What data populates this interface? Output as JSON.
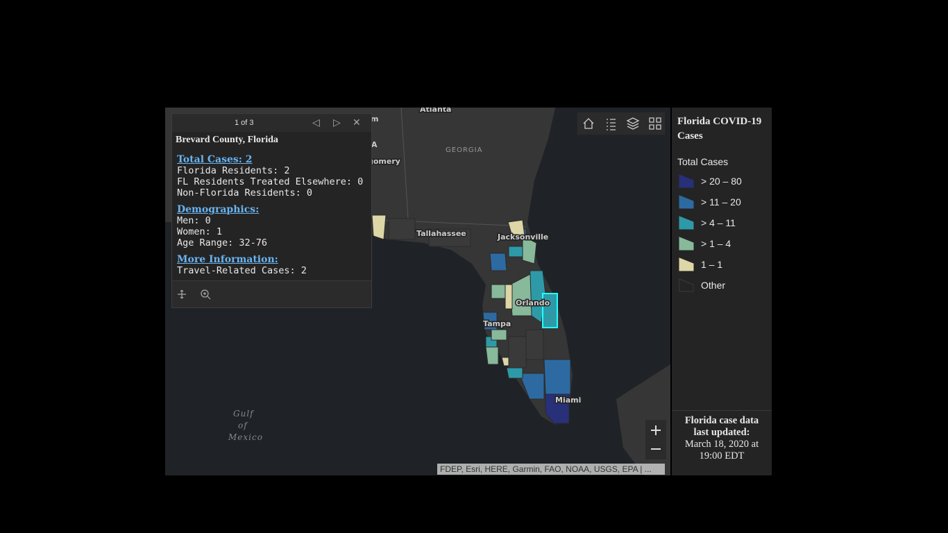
{
  "popup": {
    "pager": "1 of 3",
    "title": "Brevard County, Florida",
    "sections": [
      {
        "heading": "Total Cases: 2",
        "lines": [
          "Florida Residents: 2",
          "FL Residents Treated Elsewhere: 0",
          "Non-Florida Residents: 0"
        ]
      },
      {
        "heading": "Demographics:",
        "lines": [
          "Men: 0",
          "Women: 1",
          "Age Range: 32-76"
        ]
      },
      {
        "heading": "More Information:",
        "lines": [
          "Travel-Related Cases: 2"
        ]
      }
    ]
  },
  "map_labels": {
    "atlanta": "Atlanta",
    "georgia": "GEORGIA",
    "montgomery": "gomery",
    "m": "m",
    "a": "A",
    "tallahassee": "Tallahassee",
    "jacksonville": "Jacksonville",
    "orlando": "Orlando",
    "tampa": "Tampa",
    "miami": "Miami",
    "gulf": [
      "Gulf",
      "of",
      "Mexico"
    ]
  },
  "legend": {
    "title": "Florida COVID-19 Cases",
    "field": "Total Cases",
    "classes": [
      {
        "label": "> 20 – 80",
        "color": "#283079"
      },
      {
        "label": "> 11 – 20",
        "color": "#2d6aa1"
      },
      {
        "label": "> 4 – 11",
        "color": "#2e9aa8"
      },
      {
        "label": "> 1 – 4",
        "color": "#87b99a"
      },
      {
        "label": "1 – 1",
        "color": "#ddd6a6"
      },
      {
        "label": "Other",
        "color": "#3a3a3a"
      }
    ]
  },
  "footer": {
    "lines": [
      "Florida case data",
      "last updated:",
      "March 18, 2020 at",
      "19:00 EDT"
    ]
  },
  "attribution": "FDEP, Esri, HERE, Garmin, FAO, NOAA, USGS, EPA | ..."
}
